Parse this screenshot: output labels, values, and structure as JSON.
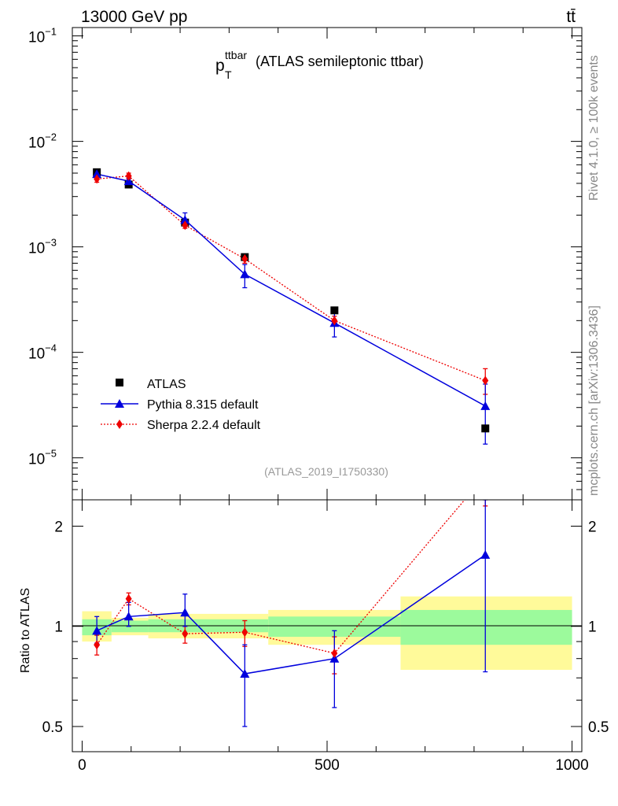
{
  "header": {
    "energy_label": "13000 GeV pp",
    "process_label": "tt̄"
  },
  "plot": {
    "title_main": "p",
    "title_sub": "T",
    "title_sup": "ttbar",
    "title_rest": "(ATLAS semileptonic ttbar)",
    "analysis_id": "(ATLAS_2019_I1750330)",
    "side_label_top": "Rivet 4.1.0, ≥ 100k events",
    "side_label_bottom": "mcplots.cern.ch [arXiv:1306.3436]",
    "ratio_ylabel": "Ratio to ATLAS"
  },
  "legend": {
    "atlas": "ATLAS",
    "pythia": "Pythia 8.315 default",
    "sherpa": "Sherpa 2.2.4 default"
  },
  "colors": {
    "atlas": "#000000",
    "pythia": "#0000dd",
    "sherpa": "#ee0000",
    "band_inner": "#9cfa9c",
    "band_outer": "#fffa9a"
  },
  "chart_data": [
    {
      "type": "scatter",
      "panel": "main",
      "yscale": "log",
      "xlim": [
        -20,
        1020
      ],
      "ylim": [
        4e-06,
        0.12
      ],
      "ytick_labels": [
        {
          "base": "10",
          "exp": "−1"
        },
        {
          "base": "10",
          "exp": "−2"
        },
        {
          "base": "10",
          "exp": "−3"
        },
        {
          "base": "10",
          "exp": "−4"
        },
        {
          "base": "10",
          "exp": "−5"
        }
      ],
      "ytick_values": [
        0.1,
        0.01,
        0.001,
        0.0001,
        1e-05
      ],
      "series": [
        {
          "name": "ATLAS",
          "x": [
            30,
            95,
            210,
            332,
            515,
            823
          ],
          "y": [
            0.0051,
            0.0039,
            0.0017,
            0.0008,
            0.00025,
            1.9e-05
          ]
        },
        {
          "name": "Pythia 8.315 default",
          "x": [
            30,
            95,
            210,
            332,
            515,
            823
          ],
          "y": [
            0.0049,
            0.0042,
            0.0018,
            0.00055,
            0.00019,
            3.1e-05
          ],
          "err_lo": [
            0.0046,
            0.0039,
            0.0016,
            0.00041,
            0.00014,
            1.35e-05
          ],
          "err_hi": [
            0.0052,
            0.0045,
            0.0021,
            0.00068,
            0.00024,
            5e-05
          ]
        },
        {
          "name": "Sherpa 2.2.4 default",
          "x": [
            30,
            95,
            210,
            332,
            515,
            823
          ],
          "y": [
            0.0044,
            0.0047,
            0.0016,
            0.00077,
            0.0002,
            5.4e-05
          ],
          "err_lo": [
            0.0041,
            0.0044,
            0.0015,
            0.0007,
            0.00018,
            4e-05
          ],
          "err_hi": [
            0.0047,
            0.005,
            0.0017,
            0.00085,
            0.00022,
            7e-05
          ]
        }
      ]
    },
    {
      "type": "line",
      "panel": "ratio",
      "yscale": "log",
      "xlim": [
        -20,
        1020
      ],
      "ylim": [
        0.42,
        2.4
      ],
      "ylabel": "Ratio to ATLAS",
      "xtick_labels": [
        "0",
        "500",
        "1000"
      ],
      "xtick_values": [
        0,
        500,
        1000
      ],
      "ytick_labels": [
        "0.5",
        "1",
        "2"
      ],
      "ytick_values": [
        0.5,
        1,
        2
      ],
      "bins": [
        {
          "lo": 0,
          "hi": 60,
          "inner": [
            0.94,
            1.05
          ],
          "outer": [
            0.9,
            1.11
          ]
        },
        {
          "lo": 60,
          "hi": 135,
          "inner": [
            0.96,
            1.04
          ],
          "outer": [
            0.94,
            1.06
          ]
        },
        {
          "lo": 135,
          "hi": 380,
          "inner": [
            0.96,
            1.05
          ],
          "outer": [
            0.92,
            1.09
          ]
        },
        {
          "lo": 380,
          "hi": 650,
          "inner": [
            0.93,
            1.07
          ],
          "outer": [
            0.88,
            1.12
          ]
        },
        {
          "lo": 650,
          "hi": 1000,
          "inner": [
            0.88,
            1.12
          ],
          "outer": [
            0.74,
            1.23
          ]
        }
      ],
      "series": [
        {
          "name": "Pythia 8.315 default",
          "x": [
            30,
            95,
            210,
            332,
            515,
            823
          ],
          "y": [
            0.97,
            1.07,
            1.1,
            0.72,
            0.8,
            1.64
          ],
          "err_lo": [
            0.89,
            1.0,
            1.0,
            0.5,
            0.57,
            0.73
          ],
          "err_hi": [
            1.07,
            1.18,
            1.25,
            0.88,
            0.97,
            2.45
          ]
        },
        {
          "name": "Sherpa 2.2.4 default",
          "x": [
            30,
            95,
            210,
            332,
            515,
            823
          ],
          "y": [
            0.88,
            1.21,
            0.95,
            0.96,
            0.83,
            2.84
          ],
          "err_lo": [
            0.82,
            1.16,
            0.89,
            0.87,
            0.72,
            2.3
          ],
          "err_hi": [
            0.94,
            1.26,
            1.0,
            1.04,
            0.93,
            3.5
          ]
        }
      ]
    }
  ]
}
